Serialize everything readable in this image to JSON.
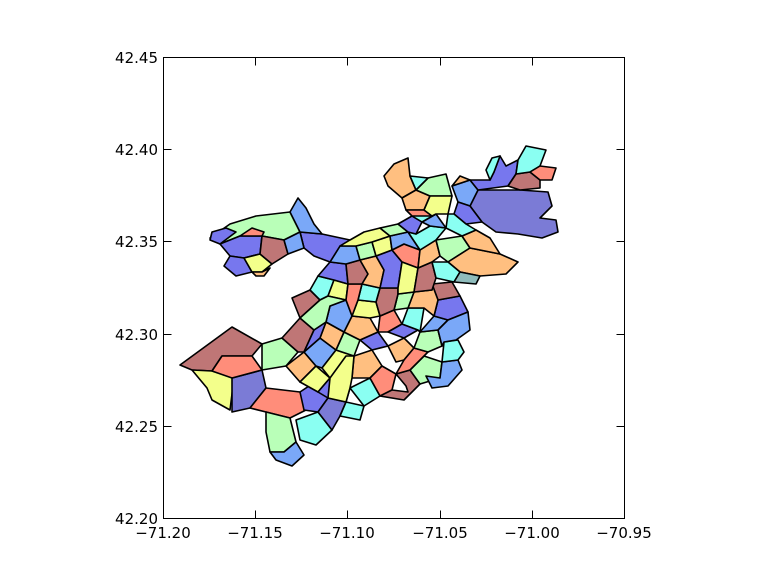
{
  "axes": {
    "x_ticks": [
      "−71.20",
      "−71.15",
      "−71.10",
      "−71.05",
      "−71.00",
      "−70.95"
    ],
    "y_ticks": [
      "42.45",
      "42.40",
      "42.35",
      "42.30",
      "42.25",
      "42.20"
    ],
    "xlim": [
      -71.2,
      -70.95
    ],
    "ylim": [
      42.2,
      42.45
    ]
  },
  "palette": [
    "#8fbcbc",
    "#7b7bd6",
    "#8df5d7",
    "#b9ffb8",
    "#ffec8b",
    "#ffbf80",
    "#ff8d7a",
    "#bf7676",
    "#7777ee",
    "#7aa8f8",
    "#f3ff8b",
    "#8afff2"
  ],
  "regions": [
    {
      "name": "boston-neighborhood-polygon",
      "color": "#ffbf80"
    }
  ]
}
